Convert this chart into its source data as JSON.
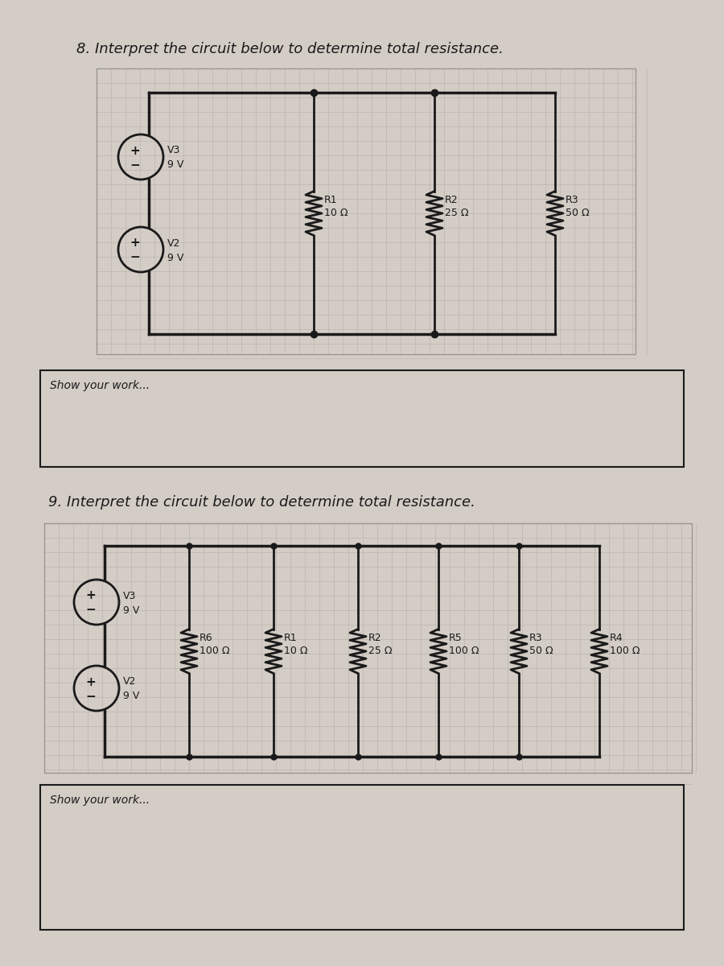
{
  "bg_color": "#d4cdc6",
  "paper_color": "#d4cdc6",
  "grid_color": "#bdb6af",
  "line_color": "#1a1a1a",
  "text_color": "#1a1a1a",
  "q8_title": "8. Interpret the circuit below to determine total resistance.",
  "q9_title": "9. Interpret the circuit below to determine total resistance.",
  "show_work_text": "Show your work...",
  "q8_v3_label": "V3",
  "q8_v3_voltage": "9 V",
  "q8_v2_label": "V2",
  "q8_v2_voltage": "9 V",
  "q8_resistors": [
    {
      "name": "R1",
      "value": "10 Ω"
    },
    {
      "name": "R2",
      "value": "25 Ω"
    },
    {
      "name": "R3",
      "value": "50 Ω"
    }
  ],
  "q9_v3_label": "V3",
  "q9_v3_voltage": "9 V",
  "q9_v2_label": "V2",
  "q9_v2_voltage": "9 V",
  "q9_resistors": [
    {
      "name": "R6",
      "value": "100 Ω"
    },
    {
      "name": "R1",
      "value": "10 Ω"
    },
    {
      "name": "R2",
      "value": "25 Ω"
    },
    {
      "name": "R5",
      "value": "100 Ω"
    },
    {
      "name": "R3",
      "value": "50 Ω"
    },
    {
      "name": "R4",
      "value": "100 Ω"
    }
  ]
}
